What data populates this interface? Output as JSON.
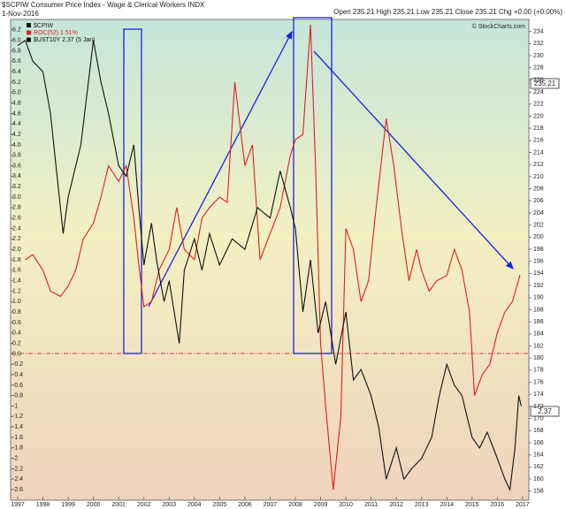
{
  "chart_data": {
    "type": "line",
    "title": "$SCPIW Consumer Price Index - Wage & Clerical Workers INDX",
    "date": "1-Nov-2016",
    "quote": "Open 235.21  High 235.21  Low 235.21  Close 235.21  Chg +0.00 (+0.00%)",
    "credit": "© StockCharts.com",
    "price_series": "$CPIW",
    "annotations": [
      "235.21",
      "2.37"
    ],
    "xlim": [
      1996.72,
      2017.25
    ],
    "xticks": [
      1997,
      1998,
      1999,
      2000,
      2001,
      2002,
      2003,
      2004,
      2005,
      2006,
      2007,
      2008,
      2009,
      2010,
      2011,
      2012,
      2013,
      2014,
      2015,
      2016,
      2017
    ],
    "ylim": [
      -2.8,
      6.4
    ],
    "yticks": [
      -2.6,
      -2.4,
      -2.2,
      -2,
      -1.8,
      -1.6,
      -1.4,
      -1.2,
      -1,
      -0.8,
      -0.6,
      -0.4,
      -0.2,
      {
        "value": 0,
        "label": "0.0"
      },
      0.2,
      0.4,
      0.6,
      0.8,
      {
        "value": 1,
        "label": "1.0"
      },
      1.2,
      1.4,
      1.6,
      1.8,
      {
        "value": 2,
        "label": "2.0"
      },
      2.2,
      2.4,
      2.6,
      2.8,
      {
        "value": 3,
        "label": "3.0"
      },
      3.2,
      3.4,
      3.6,
      3.8,
      {
        "value": 4,
        "label": "4.0"
      },
      4.2,
      4.4,
      4.6,
      4.8,
      {
        "value": 5,
        "label": "5.0"
      },
      5.2,
      5.4,
      5.6,
      5.8,
      {
        "value": 6,
        "label": "6.0"
      },
      6.2
    ],
    "y2lim": [
      156.5,
      236
    ],
    "y2ticks": [
      158,
      160,
      162,
      164,
      166,
      168,
      170,
      172,
      174,
      176,
      178,
      180,
      182,
      184,
      186,
      188,
      190,
      192,
      194,
      196,
      198,
      200,
      202,
      204,
      206,
      208,
      210,
      212,
      214,
      216,
      218,
      220,
      222,
      224,
      226,
      228,
      230,
      232,
      234
    ],
    "series": [
      {
        "name": "ROC(52) 1.51%",
        "color": "#e02020",
        "x": [
          1997.3,
          1997.6,
          1998.0,
          1998.3,
          1998.7,
          1999.0,
          1999.3,
          1999.6,
          2000.0,
          2000.3,
          2000.6,
          2001.0,
          2001.3,
          2001.6,
          2001.8,
          2002.0,
          2002.3,
          2002.6,
          2003.0,
          2003.3,
          2003.6,
          2004.0,
          2004.3,
          2004.6,
          2005.0,
          2005.3,
          2005.6,
          2006.0,
          2006.3,
          2006.6,
          2007.0,
          2007.4,
          2007.8,
          2008.0,
          2008.3,
          2008.6,
          2008.8,
          2009.0,
          2009.2,
          2009.5,
          2009.8,
          2010.0,
          2010.3,
          2010.6,
          2010.9,
          2011.2,
          2011.6,
          2011.9,
          2012.2,
          2012.5,
          2012.8,
          2013.0,
          2013.3,
          2013.6,
          2014.0,
          2014.3,
          2014.6,
          2014.9,
          2015.1,
          2015.4,
          2015.7,
          2016.0,
          2016.3,
          2016.6,
          2016.9
        ],
        "values": [
          1.8,
          1.9,
          1.6,
          1.2,
          1.1,
          1.3,
          1.6,
          2.2,
          2.5,
          3.0,
          3.6,
          3.3,
          3.6,
          2.6,
          1.7,
          0.9,
          1.0,
          1.6,
          2.0,
          2.8,
          2.0,
          1.8,
          2.6,
          2.8,
          3.0,
          2.9,
          5.2,
          3.6,
          4.0,
          1.8,
          2.3,
          2.8,
          3.8,
          4.1,
          4.2,
          6.3,
          3.6,
          0.2,
          -1.0,
          -2.6,
          -1.2,
          2.4,
          2.0,
          1.0,
          1.4,
          2.8,
          4.5,
          3.6,
          2.4,
          1.4,
          2.0,
          1.6,
          1.2,
          1.4,
          1.5,
          2.0,
          1.6,
          0.8,
          -0.8,
          -0.4,
          -0.2,
          0.4,
          0.8,
          1.0,
          1.51
        ]
      },
      {
        "name": "$UST10Y 2.37 (5 Jan)",
        "color": "#111111",
        "x": [
          1997.0,
          1997.3,
          1997.6,
          1998.0,
          1998.3,
          1998.8,
          1999.0,
          1999.5,
          2000.0,
          2000.3,
          2000.6,
          2001.0,
          2001.3,
          2001.6,
          2001.8,
          2002.0,
          2002.3,
          2002.5,
          2002.8,
          2003.0,
          2003.4,
          2003.6,
          2004.0,
          2004.3,
          2004.6,
          2005.0,
          2005.5,
          2006.0,
          2006.5,
          2007.0,
          2007.4,
          2007.8,
          2008.0,
          2008.3,
          2008.6,
          2008.9,
          2009.2,
          2009.6,
          2010.0,
          2010.3,
          2010.6,
          2011.0,
          2011.3,
          2011.6,
          2012.0,
          2012.3,
          2012.6,
          2013.0,
          2013.4,
          2013.7,
          2014.0,
          2014.3,
          2014.6,
          2015.0,
          2015.3,
          2015.6,
          2016.0,
          2016.3,
          2016.5,
          2016.7,
          2016.85,
          2016.95
        ],
        "values": [
          5.9,
          6.0,
          5.6,
          5.4,
          4.6,
          2.3,
          3.0,
          4.0,
          6.0,
          5.2,
          4.6,
          3.6,
          3.4,
          4.0,
          2.8,
          1.7,
          2.5,
          1.8,
          1.0,
          1.4,
          0.2,
          1.6,
          2.2,
          1.6,
          2.3,
          1.7,
          2.2,
          2.0,
          2.8,
          2.6,
          3.5,
          2.8,
          2.4,
          0.8,
          1.8,
          0.4,
          1.0,
          -0.2,
          0.8,
          -0.5,
          -0.3,
          -0.8,
          -1.4,
          -2.4,
          -1.8,
          -2.4,
          -2.2,
          -2.0,
          -1.6,
          -0.8,
          -0.2,
          -0.6,
          -0.8,
          -1.6,
          -1.8,
          -1.5,
          -2.0,
          -2.4,
          -2.6,
          -1.8,
          -0.8,
          -1.0
        ]
      }
    ]
  }
}
